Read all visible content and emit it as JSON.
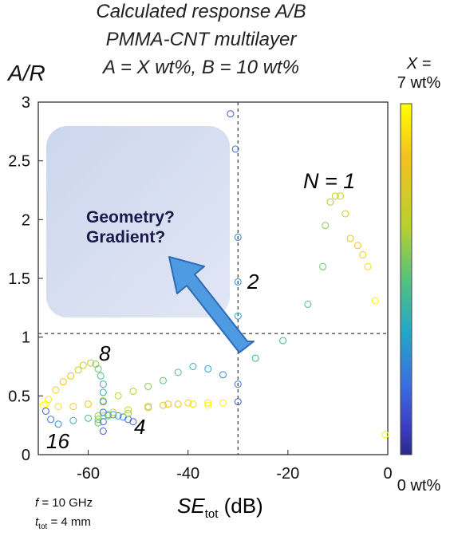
{
  "chart_data": {
    "type": "scatter",
    "title_lines": [
      "Calculated response A/B",
      "PMMA-CNT multilayer",
      "A = X wt%, B = 10 wt%"
    ],
    "ylabel": "A/R",
    "xlabel_main": "SE",
    "xlabel_sub": "tot",
    "xlabel_unit": " (dB)",
    "xlim": [
      -70,
      0
    ],
    "ylim": [
      0,
      3
    ],
    "x_ticks": [
      -60,
      -40,
      -20,
      0
    ],
    "x_tick_labels": [
      "-60",
      "-40",
      "-20",
      "0"
    ],
    "y_ticks": [
      0,
      0.5,
      1,
      1.5,
      2,
      2.5,
      3
    ],
    "y_tick_labels": [
      "0",
      "0.5",
      "1",
      "1.5",
      "2",
      "2.5",
      "3"
    ],
    "colorbar": {
      "label_top_1": "X  =",
      "label_top_2": "7 wt%",
      "label_bottom": "0 wt%",
      "colors": [
        "#ffff00",
        "#f3c120",
        "#b8d02e",
        "#55c27c",
        "#22a7c8",
        "#3a6fe0",
        "#3d3dc4",
        "#2a2a8a"
      ]
    },
    "reference_lines": {
      "x": -30,
      "y": 1.03
    },
    "annotations": {
      "n1": "N = 1",
      "n2": "2",
      "n8": "8",
      "n4": "4",
      "n16": "16",
      "box_line1": "Geometry?",
      "box_line2": "Gradient?"
    },
    "series": [
      {
        "label": "1",
        "points": [
          [
            -31.5,
            2.9
          ],
          [
            -30.5,
            2.6
          ],
          [
            -30,
            1.85
          ],
          [
            -30,
            1.47
          ],
          [
            -30,
            1.18
          ],
          [
            -29.5,
            0.95
          ],
          [
            -26.5,
            0.82
          ],
          [
            -21,
            0.97
          ],
          [
            -16,
            1.28
          ],
          [
            -13,
            1.6
          ],
          [
            -12.5,
            1.95
          ],
          [
            -11.5,
            2.15
          ],
          [
            -10.5,
            2.2
          ],
          [
            -9.5,
            2.2
          ],
          [
            -8.5,
            2.05
          ],
          [
            -7.5,
            1.84
          ],
          [
            -6,
            1.78
          ],
          [
            -5,
            1.7
          ],
          [
            -4,
            1.6
          ],
          [
            -2.5,
            1.31
          ],
          [
            -0.5,
            0.17
          ]
        ]
      },
      {
        "label": "2",
        "points": [
          [
            -30,
            0.45
          ],
          [
            -30,
            0.6
          ],
          [
            -33,
            0.68
          ],
          [
            -36,
            0.73
          ],
          [
            -39,
            0.75
          ],
          [
            -42,
            0.7
          ],
          [
            -45,
            0.63
          ],
          [
            -48,
            0.58
          ],
          [
            -51,
            0.54
          ],
          [
            -54,
            0.5
          ],
          [
            -57,
            0.46
          ],
          [
            -60,
            0.43
          ],
          [
            -63,
            0.41
          ],
          [
            -66,
            0.41
          ],
          [
            -68.5,
            0.43
          ]
        ]
      },
      {
        "label": "4",
        "points": [
          [
            -51,
            0.28
          ],
          [
            -52,
            0.3
          ],
          [
            -53,
            0.32
          ],
          [
            -54,
            0.33
          ],
          [
            -55,
            0.34
          ],
          [
            -56,
            0.34
          ],
          [
            -57,
            0.36
          ],
          [
            -58,
            0.27
          ],
          [
            -58,
            0.3
          ],
          [
            -58,
            0.33
          ],
          [
            -57,
            0.33
          ],
          [
            -55,
            0.36
          ],
          [
            -52,
            0.38
          ],
          [
            -48,
            0.41
          ],
          [
            -44,
            0.43
          ],
          [
            -40,
            0.44
          ],
          [
            -36,
            0.44
          ],
          [
            -33,
            0.44
          ]
        ]
      },
      {
        "label": "8",
        "points": [
          [
            -57,
            0.2
          ],
          [
            -57,
            0.28
          ],
          [
            -57,
            0.36
          ],
          [
            -57,
            0.45
          ],
          [
            -57,
            0.53
          ],
          [
            -57,
            0.6
          ],
          [
            -57.5,
            0.67
          ],
          [
            -58,
            0.73
          ],
          [
            -58.5,
            0.77
          ],
          [
            -59.5,
            0.78
          ],
          [
            -61,
            0.76
          ],
          [
            -62,
            0.72
          ],
          [
            -63.5,
            0.67
          ],
          [
            -65,
            0.62
          ],
          [
            -66.5,
            0.55
          ],
          [
            -68,
            0.47
          ],
          [
            -69,
            0.42
          ]
        ]
      },
      {
        "label": "16",
        "points": [
          [
            -68.5,
            0.37
          ],
          [
            -67.5,
            0.3
          ],
          [
            -66,
            0.26
          ],
          [
            -63,
            0.29
          ],
          [
            -60,
            0.31
          ],
          [
            -56,
            0.33
          ],
          [
            -52,
            0.35
          ],
          [
            -48,
            0.4
          ],
          [
            -45,
            0.42
          ],
          [
            -42,
            0.43
          ],
          [
            -39,
            0.43
          ],
          [
            -36,
            0.42
          ]
        ]
      }
    ]
  }
}
